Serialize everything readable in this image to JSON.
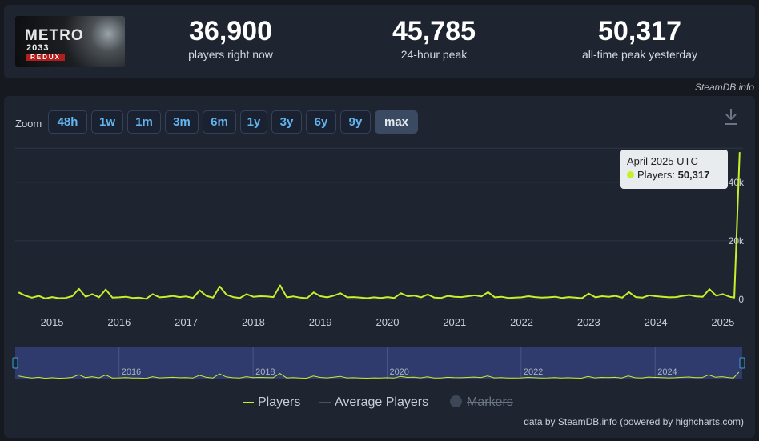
{
  "game": {
    "logo_word": "METRO",
    "logo_sub": "2033",
    "logo_redux": "REDUX"
  },
  "stats": [
    {
      "value": "36,900",
      "label": "players right now"
    },
    {
      "value": "45,785",
      "label": "24-hour peak"
    },
    {
      "value": "50,317",
      "label": "all-time peak yesterday"
    }
  ],
  "site_credit": "SteamDB.info",
  "zoom": {
    "label": "Zoom",
    "options": [
      "48h",
      "1w",
      "1m",
      "3m",
      "6m",
      "1y",
      "3y",
      "6y",
      "9y",
      "max"
    ],
    "selected": "max"
  },
  "tooltip": {
    "title": "April 2025 UTC",
    "series": "Players",
    "value": "50,317"
  },
  "legend": {
    "players": "Players",
    "average": "Average Players",
    "markers": "Markers"
  },
  "footer_credit": "data by SteamDB.info (powered by highcharts.com)",
  "colors": {
    "players_line": "#c6f12a",
    "average_line": "#4a525d",
    "navigator_fill": "#2f3a6d"
  },
  "chart_data": {
    "type": "line",
    "title": "",
    "xlabel": "",
    "ylabel": "",
    "y_ticks": [
      "0",
      "20k",
      "40k"
    ],
    "ylim": [
      0,
      52000
    ],
    "x_ticks": [
      "2015",
      "2016",
      "2017",
      "2018",
      "2019",
      "2020",
      "2021",
      "2022",
      "2023",
      "2024",
      "2025"
    ],
    "navigator_ticks": [
      "2016",
      "2018",
      "2020",
      "2022",
      "2024"
    ],
    "legend_position": "bottom-center",
    "grid": true,
    "series": [
      {
        "name": "Players",
        "x": [
          2014.5,
          2014.6,
          2014.7,
          2014.8,
          2014.9,
          2015.0,
          2015.1,
          2015.2,
          2015.3,
          2015.4,
          2015.5,
          2015.6,
          2015.7,
          2015.8,
          2015.9,
          2016.0,
          2016.1,
          2016.2,
          2016.3,
          2016.4,
          2016.5,
          2016.6,
          2016.7,
          2016.8,
          2016.9,
          2017.0,
          2017.1,
          2017.2,
          2017.3,
          2017.4,
          2017.5,
          2017.6,
          2017.7,
          2017.8,
          2017.9,
          2018.0,
          2018.1,
          2018.2,
          2018.3,
          2018.4,
          2018.5,
          2018.6,
          2018.7,
          2018.8,
          2018.9,
          2019.0,
          2019.1,
          2019.2,
          2019.3,
          2019.4,
          2019.5,
          2019.6,
          2019.7,
          2019.8,
          2019.9,
          2020.0,
          2020.1,
          2020.2,
          2020.3,
          2020.4,
          2020.5,
          2020.6,
          2020.7,
          2020.8,
          2020.9,
          2021.0,
          2021.1,
          2021.2,
          2021.3,
          2021.4,
          2021.5,
          2021.6,
          2021.7,
          2021.8,
          2021.9,
          2022.0,
          2022.1,
          2022.2,
          2022.3,
          2022.4,
          2022.5,
          2022.6,
          2022.7,
          2022.8,
          2022.9,
          2023.0,
          2023.1,
          2023.2,
          2023.3,
          2023.4,
          2023.5,
          2023.6,
          2023.7,
          2023.8,
          2023.9,
          2024.0,
          2024.1,
          2024.2,
          2024.3,
          2024.4,
          2024.5,
          2024.6,
          2024.7,
          2024.8,
          2024.9,
          2025.0,
          2025.1,
          2025.17,
          2025.25
        ],
        "values": [
          2400,
          1300,
          600,
          1200,
          300,
          800,
          400,
          500,
          1100,
          3600,
          900,
          1800,
          700,
          3400,
          600,
          700,
          900,
          500,
          600,
          200,
          1800,
          700,
          900,
          1200,
          800,
          1000,
          500,
          3100,
          1200,
          600,
          4400,
          1600,
          800,
          500,
          1800,
          900,
          1100,
          1000,
          800,
          4800,
          700,
          1000,
          600,
          400,
          2400,
          1100,
          700,
          1300,
          2100,
          700,
          800,
          600,
          400,
          700,
          500,
          800,
          500,
          2100,
          1100,
          1300,
          700,
          1700,
          600,
          500,
          1200,
          900,
          800,
          1100,
          1400,
          1000,
          2500,
          700,
          900,
          500,
          600,
          700,
          1100,
          800,
          600,
          700,
          900,
          500,
          800,
          600,
          400,
          2000,
          700,
          1100,
          900,
          1200,
          600,
          2500,
          800,
          600,
          1400,
          1100,
          900,
          700,
          800,
          1200,
          1500,
          1000,
          900,
          3500,
          1300,
          1800,
          900,
          600,
          50317
        ]
      }
    ]
  }
}
